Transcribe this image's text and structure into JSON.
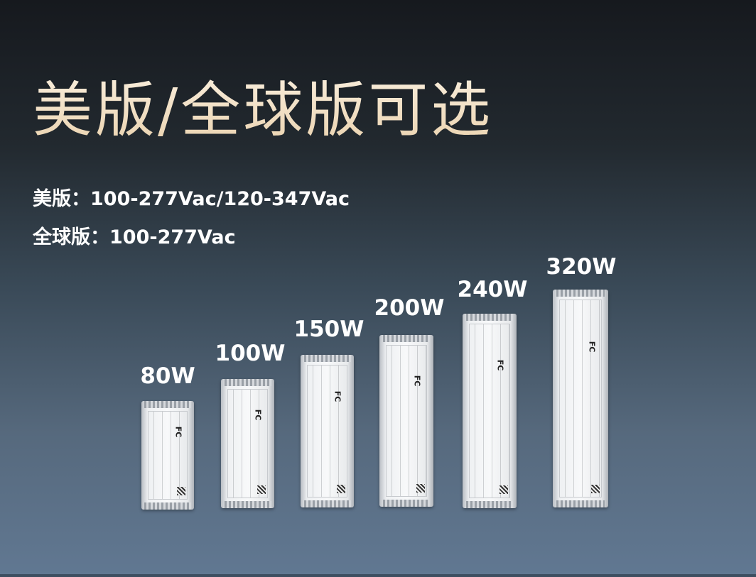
{
  "title": "美版/全球版可选",
  "specs": [
    {
      "text": "美版：100-277Vac/120-347Vac"
    },
    {
      "text": "全球版：100-277Vac"
    }
  ],
  "products": [
    {
      "wattage": "80W"
    },
    {
      "wattage": "100W"
    },
    {
      "wattage": "150W"
    },
    {
      "wattage": "200W"
    },
    {
      "wattage": "240W"
    },
    {
      "wattage": "320W"
    }
  ],
  "colors": {
    "title_gradient": [
      "#fbf1e2",
      "#ead2ae"
    ],
    "text": "#ffffff"
  }
}
